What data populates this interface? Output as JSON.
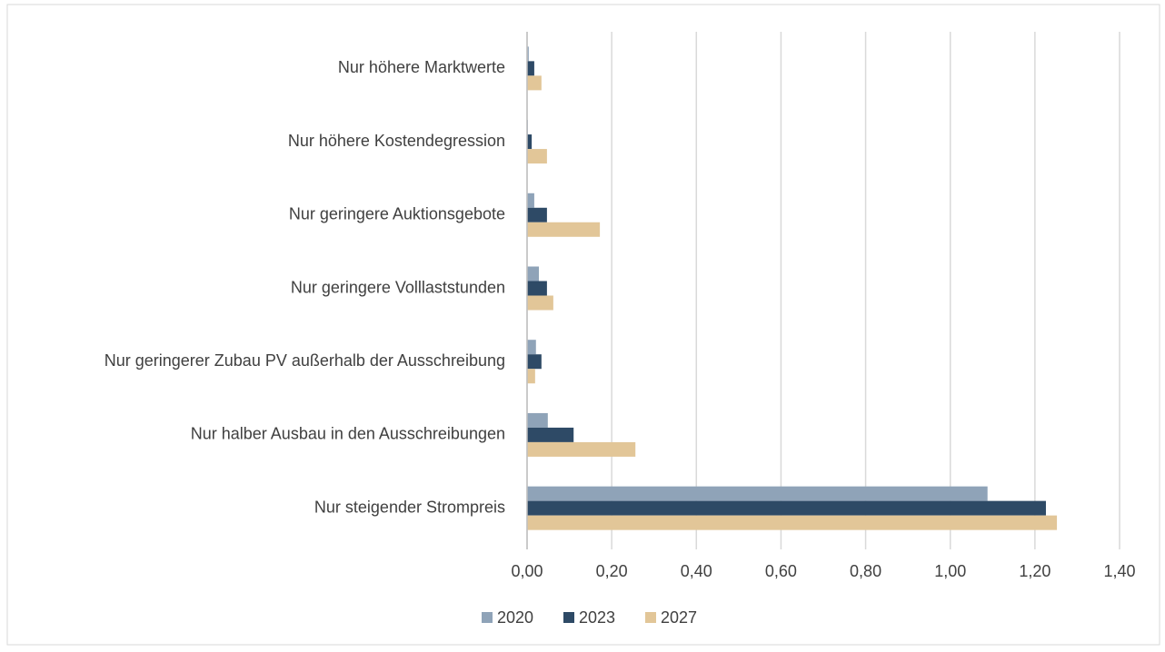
{
  "chart_data": {
    "type": "hbar",
    "categories": [
      "Nur höhere Marktwerte",
      "Nur höhere Kostendegression",
      "Nur geringere Auktionsgebote",
      "Nur geringere Volllaststunden",
      "Nur geringerer Zubau PV außerhalb der Ausschreibung",
      "Nur halber Ausbau in den Ausschreibungen",
      "Nur steigender Strompreis"
    ],
    "series": [
      {
        "name": "2020",
        "color": "#8fa3b8",
        "values": [
          0.004,
          0.002,
          0.017,
          0.028,
          0.021,
          0.049,
          1.088
        ]
      },
      {
        "name": "2023",
        "color": "#2e4a66",
        "values": [
          0.017,
          0.011,
          0.047,
          0.047,
          0.034,
          0.11,
          1.226
        ]
      },
      {
        "name": "2027",
        "color": "#e2c698",
        "values": [
          0.034,
          0.047,
          0.172,
          0.062,
          0.019,
          0.256,
          1.252
        ]
      }
    ],
    "xlim": [
      0,
      1.4
    ],
    "xticks": [
      {
        "value": 0,
        "label": "0,00"
      },
      {
        "value": 0.2,
        "label": "0,20"
      },
      {
        "value": 0.4,
        "label": "0,40"
      },
      {
        "value": 0.6,
        "label": "0,60"
      },
      {
        "value": 0.8,
        "label": "0,80"
      },
      {
        "value": 1.0,
        "label": "1,00"
      },
      {
        "value": 1.2,
        "label": "1,20"
      },
      {
        "value": 1.4,
        "label": "1,40"
      }
    ],
    "grid": true,
    "legend": "bottom"
  }
}
